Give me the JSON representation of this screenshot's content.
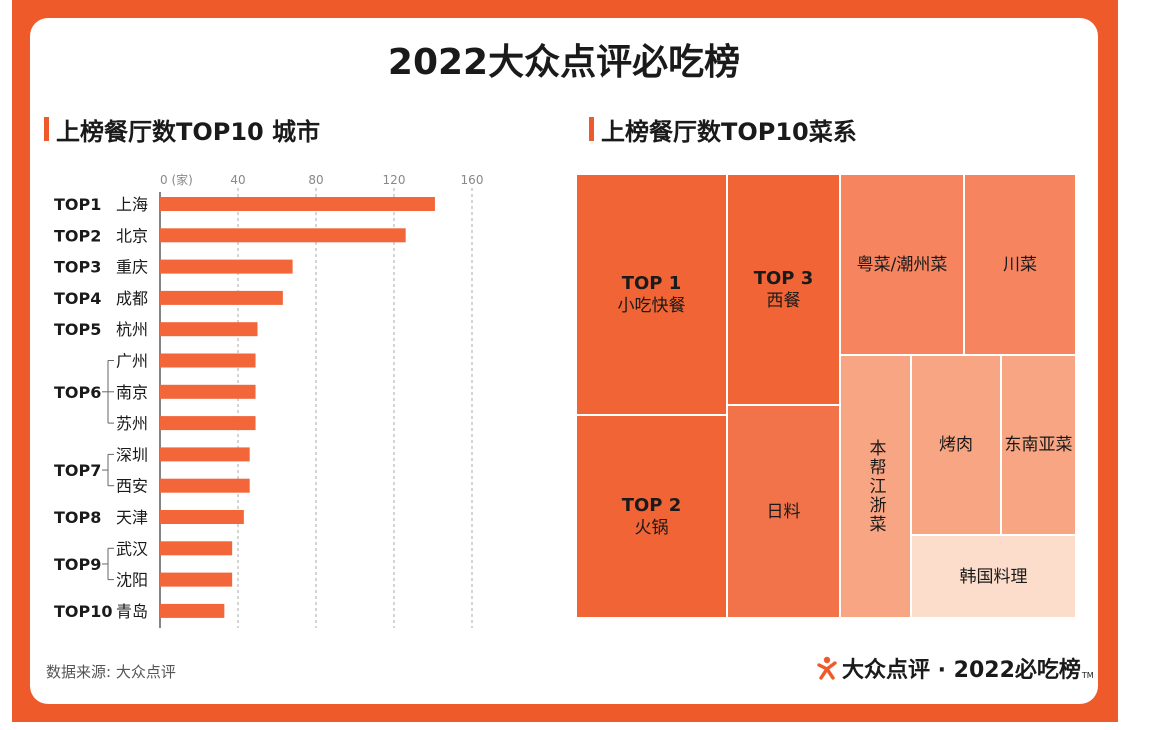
{
  "title": "2022大众点评必吃榜",
  "left_section_title": "上榜餐厅数TOP10 城市",
  "right_section_title": "上榜餐厅数TOP10菜系",
  "source": "数据来源: 大众点评",
  "brand": {
    "text": "大众点评 · 2022必吃榜",
    "tm": "TM"
  },
  "colors": {
    "accent": "#ef5a2a",
    "bar": "#f2663a",
    "t1": "#f06435",
    "t2": "#f2724a",
    "t3": "#f5845f",
    "t4": "#f8a583",
    "t5": "#fcdccb"
  },
  "chart_data": [
    {
      "type": "bar",
      "orientation": "horizontal",
      "title": "上榜餐厅数TOP10 城市",
      "unit_label": "0 (家)",
      "xlim": [
        0,
        160
      ],
      "xticks": [
        0,
        40,
        80,
        120,
        160
      ],
      "grid": true,
      "categories": [
        "上海",
        "北京",
        "重庆",
        "成都",
        "杭州",
        "广州",
        "南京",
        "苏州",
        "深圳",
        "西安",
        "天津",
        "武汉",
        "沈阳",
        "青岛"
      ],
      "values": [
        141,
        126,
        68,
        63,
        50,
        49,
        49,
        49,
        46,
        46,
        43,
        37,
        37,
        33
      ],
      "rank_groups": [
        {
          "label": "TOP1",
          "members": [
            0
          ]
        },
        {
          "label": "TOP2",
          "members": [
            1
          ]
        },
        {
          "label": "TOP3",
          "members": [
            2
          ]
        },
        {
          "label": "TOP4",
          "members": [
            3
          ]
        },
        {
          "label": "TOP5",
          "members": [
            4
          ]
        },
        {
          "label": "TOP6",
          "members": [
            5,
            6,
            7
          ]
        },
        {
          "label": "TOP7",
          "members": [
            8,
            9
          ]
        },
        {
          "label": "TOP8",
          "members": [
            10
          ]
        },
        {
          "label": "TOP9",
          "members": [
            11,
            12
          ]
        },
        {
          "label": "TOP10",
          "members": [
            13
          ]
        }
      ]
    },
    {
      "type": "treemap",
      "title": "上榜餐厅数TOP10菜系",
      "cells": [
        {
          "rank": "TOP 1",
          "label": "小吃快餐"
        },
        {
          "rank": "TOP 2",
          "label": "火锅"
        },
        {
          "rank": "TOP 3",
          "label": "西餐"
        },
        {
          "rank": "",
          "label": "日料"
        },
        {
          "rank": "",
          "label": "粤菜/潮州菜"
        },
        {
          "rank": "",
          "label": "川菜"
        },
        {
          "rank": "",
          "label": "本帮江浙菜"
        },
        {
          "rank": "",
          "label": "烤肉"
        },
        {
          "rank": "",
          "label": "东南亚菜"
        },
        {
          "rank": "",
          "label": "韩国料理"
        }
      ]
    }
  ]
}
